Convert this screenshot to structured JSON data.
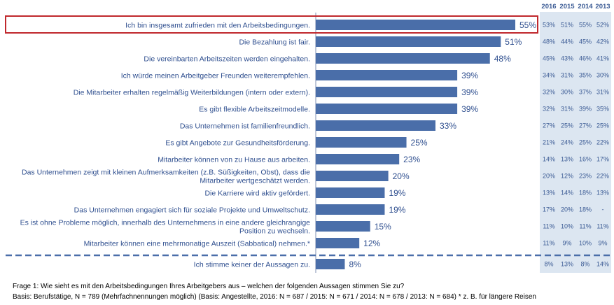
{
  "chart_data": {
    "type": "bar",
    "orientation": "horizontal",
    "unit": "%",
    "xlim": [
      0,
      55
    ],
    "highlight_index": 0,
    "colors": {
      "bar": "#4a6ea9",
      "highlight_border": "#c0282d",
      "history_bg": "#dce6f1",
      "divider": "#4a6ea9",
      "text": "#2f4f8f"
    },
    "categories": [
      "Ich bin insgesamt zufrieden mit den Arbeitsbedingungen.",
      "Die Bezahlung ist fair.",
      "Die vereinbarten Arbeitszeiten werden eingehalten.",
      "Ich würde meinen Arbeitgeber Freunden weiterempfehlen.",
      "Die Mitarbeiter erhalten regelmäßig Weiterbildungen (intern oder extern).",
      "Es gibt flexible Arbeitszeitmodelle.",
      "Das Unternehmen ist familienfreundlich.",
      "Es gibt Angebote zur Gesundheitsförderung.",
      "Mitarbeiter können von zu Hause aus arbeiten.",
      "Das Unternehmen zeigt mit kleinen Aufmerksamkeiten (z.B. Süßigkeiten, Obst), dass die Mitarbeiter wertgeschätzt werden.",
      "Die Karriere wird aktiv gefördert.",
      "Das Unternehmen engagiert sich für soziale Projekte und Umweltschutz.",
      "Es ist ohne Probleme möglich, innerhalb des Unternehmens in eine andere gleichrangige Position zu wechseln.",
      "Mitarbeiter können eine mehrmonatige Auszeit (Sabbatical) nehmen.*",
      "Ich stimme keiner der Aussagen zu."
    ],
    "category_lines": [
      [
        "Ich bin insgesamt zufrieden mit den Arbeitsbedingungen."
      ],
      [
        "Die Bezahlung ist fair."
      ],
      [
        "Die vereinbarten Arbeitszeiten werden eingehalten."
      ],
      [
        "Ich würde meinen Arbeitgeber Freunden weiterempfehlen."
      ],
      [
        "Die Mitarbeiter erhalten regelmäßig Weiterbildungen (intern oder extern)."
      ],
      [
        "Es gibt flexible Arbeitszeitmodelle."
      ],
      [
        "Das Unternehmen ist familienfreundlich."
      ],
      [
        "Es gibt Angebote zur Gesundheitsförderung."
      ],
      [
        "Mitarbeiter können von zu Hause aus arbeiten."
      ],
      [
        "Das Unternehmen zeigt mit kleinen Aufmerksamkeiten (z.B. Süßigkeiten, Obst), dass die",
        "Mitarbeiter wertgeschätzt werden."
      ],
      [
        "Die Karriere wird aktiv gefördert."
      ],
      [
        "Das Unternehmen engagiert sich für soziale Projekte und Umweltschutz."
      ],
      [
        "Es ist ohne Probleme möglich, innerhalb des Unternehmens in eine andere gleichrangige",
        "Position zu wechseln."
      ],
      [
        "Mitarbeiter können eine mehrmonatige Auszeit (Sabbatical) nehmen.*"
      ],
      [
        "Ich stimme keiner der Aussagen zu."
      ]
    ],
    "values": [
      55,
      51,
      48,
      39,
      39,
      39,
      33,
      25,
      23,
      20,
      19,
      19,
      15,
      12,
      8
    ],
    "value_labels": [
      "55%",
      "51%",
      "48%",
      "39%",
      "39%",
      "39%",
      "33%",
      "25%",
      "23%",
      "20%",
      "19%",
      "19%",
      "15%",
      "12%",
      "8%"
    ],
    "history": {
      "years": [
        "2016",
        "2015",
        "2014",
        "2013"
      ],
      "rows": [
        [
          "53%",
          "51%",
          "55%",
          "52%"
        ],
        [
          "48%",
          "44%",
          "45%",
          "42%"
        ],
        [
          "45%",
          "43%",
          "46%",
          "41%"
        ],
        [
          "34%",
          "31%",
          "35%",
          "30%"
        ],
        [
          "32%",
          "30%",
          "37%",
          "31%"
        ],
        [
          "32%",
          "31%",
          "39%",
          "35%"
        ],
        [
          "27%",
          "25%",
          "27%",
          "25%"
        ],
        [
          "21%",
          "24%",
          "25%",
          "22%"
        ],
        [
          "14%",
          "13%",
          "16%",
          "17%"
        ],
        [
          "20%",
          "12%",
          "23%",
          "22%"
        ],
        [
          "13%",
          "14%",
          "18%",
          "13%"
        ],
        [
          "17%",
          "20%",
          "18%",
          "-"
        ],
        [
          "11%",
          "10%",
          "11%",
          "11%"
        ],
        [
          "11%",
          "9%",
          "10%",
          "9%"
        ],
        [
          "8%",
          "13%",
          "8%",
          "14%"
        ]
      ]
    }
  },
  "footnote": {
    "line1": "Frage 1: Wie sieht es mit den Arbeitsbedingungen Ihres Arbeitgebers aus – welchen der folgenden Aussagen stimmen Sie zu?",
    "line2": "Basis: Berufstätige, N = 789 (Mehrfachnennungen möglich) (Basis: Angestellte, 2016: N = 687 / 2015: N = 671 / 2014: N = 678 / 2013: N = 684) * z. B. für längere Reisen"
  }
}
